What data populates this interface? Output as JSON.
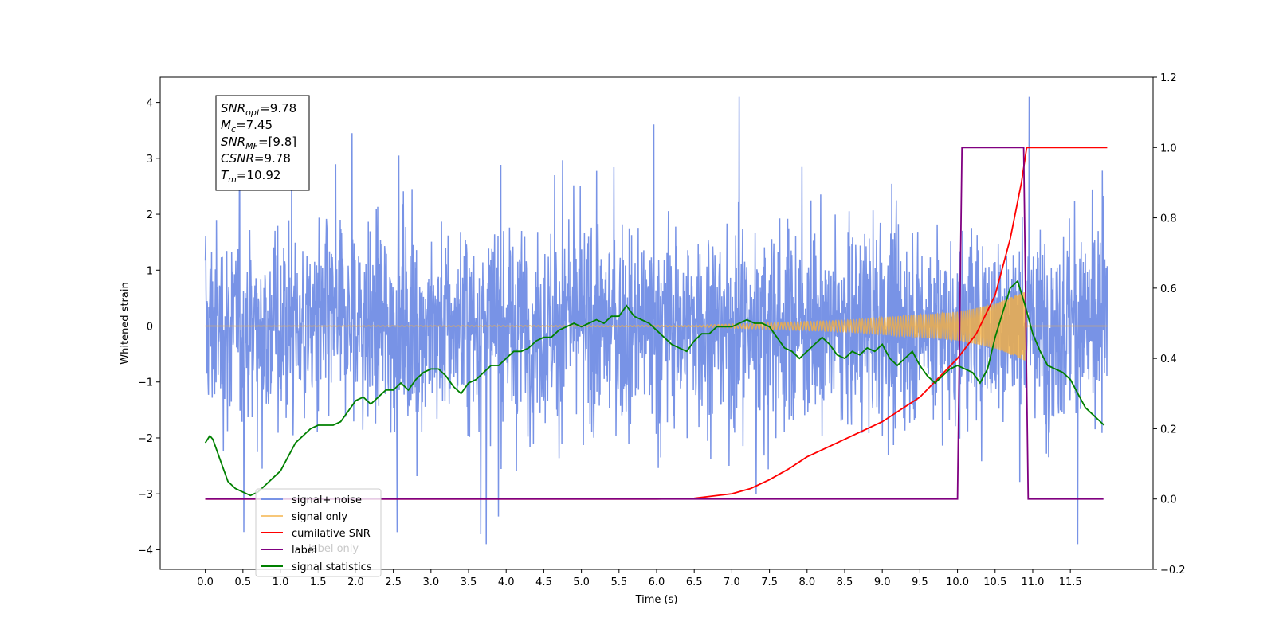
{
  "chart_data": {
    "type": "line",
    "xlabel": "Time (s)",
    "ylabel": "Whitened strain",
    "xlim": [
      -0.6,
      12.6
    ],
    "ylim_left": [
      -4.35,
      4.45
    ],
    "ylim_right": [
      -0.2,
      1.2
    ],
    "x_ticks": [
      0.0,
      0.5,
      1.0,
      1.5,
      2.0,
      2.5,
      3.0,
      3.5,
      4.0,
      4.5,
      5.0,
      5.5,
      6.0,
      6.5,
      7.0,
      7.5,
      8.0,
      8.5,
      9.0,
      9.5,
      10.0,
      10.5,
      11.0,
      11.5
    ],
    "x_tick_labels": [
      "0.0",
      "0.5",
      "1.0",
      "1.5",
      "2.0",
      "2.5",
      "3.0",
      "3.5",
      "4.0",
      "4.5",
      "5.0",
      "5.5",
      "6.0",
      "6.5",
      "7.0",
      "7.5",
      "8.0",
      "8.5",
      "9.0",
      "9.5",
      "10.0",
      "10.5",
      "11.0",
      "11.5"
    ],
    "y_left_ticks": [
      -4,
      -3,
      -2,
      -1,
      0,
      1,
      2,
      3,
      4
    ],
    "y_left_tick_labels": [
      "−4",
      "−3",
      "−2",
      "−1",
      "0",
      "1",
      "2",
      "3",
      "4"
    ],
    "y_right_ticks": [
      -0.2,
      0.0,
      0.2,
      0.4,
      0.6,
      0.8,
      1.0,
      1.2
    ],
    "y_right_tick_labels": [
      "−0.2",
      "0.0",
      "0.2",
      "0.4",
      "0.6",
      "0.8",
      "1.0",
      "1.2"
    ],
    "grid": false,
    "legend_position": "lower-left",
    "annotation_lines": [
      {
        "sym": "SNR",
        "sub": "opt",
        "val": "=9.78"
      },
      {
        "sym": "M",
        "sub": "c",
        "val": "=7.45"
      },
      {
        "sym": "SNR",
        "sub": "MF",
        "val": "=[9.8]"
      },
      {
        "sym": "CSNR",
        "sub": "",
        "val": "=9.78"
      },
      {
        "sym": "T",
        "sub": "m",
        "val": "=10.92"
      }
    ],
    "series": [
      {
        "name": "signal+ noise",
        "axis": "left",
        "color": "#7893e6",
        "t_range": [
          0.0,
          11.99
        ],
        "envelope": {
          "typical_amplitude": 1.6,
          "max": 4.1,
          "min": -3.9
        }
      },
      {
        "name": "signal only",
        "axis": "left",
        "color": "#f5b041",
        "chirp": {
          "t_start": 0.0,
          "t_merger": 10.92,
          "t_end": 11.99,
          "amplitude_points": [
            [
              0.0,
              0.0
            ],
            [
              6.5,
              0.01
            ],
            [
              7.5,
              0.06
            ],
            [
              8.5,
              0.1
            ],
            [
              9.5,
              0.2
            ],
            [
              10.0,
              0.25
            ],
            [
              10.5,
              0.4
            ],
            [
              10.9,
              0.62
            ],
            [
              10.92,
              0.0
            ]
          ]
        }
      },
      {
        "name": "cumilative SNR",
        "axis": "right",
        "color": "#ff0000",
        "points": [
          [
            0.0,
            0.0
          ],
          [
            6.0,
            0.0
          ],
          [
            6.5,
            0.002
          ],
          [
            7.0,
            0.015
          ],
          [
            7.25,
            0.03
          ],
          [
            7.5,
            0.055
          ],
          [
            7.75,
            0.085
          ],
          [
            8.0,
            0.12
          ],
          [
            8.5,
            0.17
          ],
          [
            9.0,
            0.22
          ],
          [
            9.5,
            0.29
          ],
          [
            10.0,
            0.4
          ],
          [
            10.25,
            0.47
          ],
          [
            10.5,
            0.58
          ],
          [
            10.7,
            0.74
          ],
          [
            10.85,
            0.9
          ],
          [
            10.92,
            1.0
          ],
          [
            11.99,
            1.0
          ]
        ]
      },
      {
        "name": "label",
        "axis": "right",
        "color": "#800080",
        "points": [
          [
            0.0,
            0.0
          ],
          [
            10.0,
            0.0
          ],
          [
            10.06,
            1.0
          ],
          [
            10.88,
            1.0
          ],
          [
            10.94,
            0.0
          ],
          [
            11.94,
            0.0
          ]
        ]
      },
      {
        "name": "signal statistics",
        "axis": "right",
        "color": "#008000",
        "points": [
          [
            0.0,
            0.16
          ],
          [
            0.06,
            0.18
          ],
          [
            0.1,
            0.17
          ],
          [
            0.2,
            0.11
          ],
          [
            0.3,
            0.05
          ],
          [
            0.4,
            0.03
          ],
          [
            0.5,
            0.02
          ],
          [
            0.6,
            0.01
          ],
          [
            0.7,
            0.02
          ],
          [
            0.8,
            0.04
          ],
          [
            0.9,
            0.06
          ],
          [
            1.0,
            0.08
          ],
          [
            1.1,
            0.12
          ],
          [
            1.2,
            0.16
          ],
          [
            1.3,
            0.18
          ],
          [
            1.4,
            0.2
          ],
          [
            1.5,
            0.21
          ],
          [
            1.6,
            0.21
          ],
          [
            1.7,
            0.21
          ],
          [
            1.8,
            0.22
          ],
          [
            1.9,
            0.25
          ],
          [
            2.0,
            0.28
          ],
          [
            2.1,
            0.29
          ],
          [
            2.2,
            0.27
          ],
          [
            2.3,
            0.29
          ],
          [
            2.4,
            0.31
          ],
          [
            2.5,
            0.31
          ],
          [
            2.6,
            0.33
          ],
          [
            2.7,
            0.31
          ],
          [
            2.8,
            0.34
          ],
          [
            2.9,
            0.36
          ],
          [
            3.0,
            0.37
          ],
          [
            3.1,
            0.37
          ],
          [
            3.2,
            0.35
          ],
          [
            3.3,
            0.32
          ],
          [
            3.4,
            0.3
          ],
          [
            3.5,
            0.33
          ],
          [
            3.6,
            0.34
          ],
          [
            3.7,
            0.36
          ],
          [
            3.8,
            0.38
          ],
          [
            3.9,
            0.38
          ],
          [
            4.0,
            0.4
          ],
          [
            4.1,
            0.42
          ],
          [
            4.2,
            0.42
          ],
          [
            4.3,
            0.43
          ],
          [
            4.4,
            0.45
          ],
          [
            4.5,
            0.46
          ],
          [
            4.6,
            0.46
          ],
          [
            4.7,
            0.48
          ],
          [
            4.8,
            0.49
          ],
          [
            4.9,
            0.5
          ],
          [
            5.0,
            0.49
          ],
          [
            5.1,
            0.5
          ],
          [
            5.2,
            0.51
          ],
          [
            5.3,
            0.5
          ],
          [
            5.4,
            0.52
          ],
          [
            5.5,
            0.52
          ],
          [
            5.6,
            0.55
          ],
          [
            5.7,
            0.52
          ],
          [
            5.8,
            0.51
          ],
          [
            5.9,
            0.5
          ],
          [
            6.0,
            0.48
          ],
          [
            6.1,
            0.46
          ],
          [
            6.2,
            0.44
          ],
          [
            6.3,
            0.43
          ],
          [
            6.4,
            0.42
          ],
          [
            6.5,
            0.45
          ],
          [
            6.6,
            0.47
          ],
          [
            6.7,
            0.47
          ],
          [
            6.8,
            0.49
          ],
          [
            6.9,
            0.49
          ],
          [
            7.0,
            0.49
          ],
          [
            7.1,
            0.5
          ],
          [
            7.2,
            0.51
          ],
          [
            7.3,
            0.5
          ],
          [
            7.4,
            0.5
          ],
          [
            7.5,
            0.49
          ],
          [
            7.6,
            0.46
          ],
          [
            7.7,
            0.43
          ],
          [
            7.8,
            0.42
          ],
          [
            7.9,
            0.4
          ],
          [
            8.0,
            0.42
          ],
          [
            8.1,
            0.44
          ],
          [
            8.2,
            0.46
          ],
          [
            8.3,
            0.44
          ],
          [
            8.4,
            0.41
          ],
          [
            8.5,
            0.4
          ],
          [
            8.6,
            0.42
          ],
          [
            8.7,
            0.41
          ],
          [
            8.8,
            0.43
          ],
          [
            8.9,
            0.42
          ],
          [
            9.0,
            0.44
          ],
          [
            9.1,
            0.4
          ],
          [
            9.2,
            0.38
          ],
          [
            9.3,
            0.4
          ],
          [
            9.4,
            0.42
          ],
          [
            9.5,
            0.38
          ],
          [
            9.6,
            0.35
          ],
          [
            9.7,
            0.33
          ],
          [
            9.8,
            0.35
          ],
          [
            9.9,
            0.37
          ],
          [
            10.0,
            0.38
          ],
          [
            10.1,
            0.37
          ],
          [
            10.2,
            0.36
          ],
          [
            10.3,
            0.33
          ],
          [
            10.4,
            0.37
          ],
          [
            10.5,
            0.46
          ],
          [
            10.6,
            0.53
          ],
          [
            10.7,
            0.6
          ],
          [
            10.8,
            0.62
          ],
          [
            10.9,
            0.55
          ],
          [
            11.0,
            0.47
          ],
          [
            11.1,
            0.42
          ],
          [
            11.2,
            0.38
          ],
          [
            11.3,
            0.37
          ],
          [
            11.4,
            0.36
          ],
          [
            11.5,
            0.34
          ],
          [
            11.6,
            0.3
          ],
          [
            11.7,
            0.26
          ],
          [
            11.8,
            0.24
          ],
          [
            11.9,
            0.22
          ],
          [
            11.95,
            0.21
          ]
        ]
      }
    ],
    "legend_entries": [
      {
        "name": "signal+ noise",
        "color": "#7893e6"
      },
      {
        "name": "signal only",
        "color": "#f5b041"
      },
      {
        "name": "cumilative SNR",
        "color": "#ff0000"
      },
      {
        "name": "label",
        "color": "#800080"
      },
      {
        "name": "signal statistics",
        "color": "#008000"
      }
    ],
    "legend_hidden_text": [
      "label only"
    ]
  }
}
